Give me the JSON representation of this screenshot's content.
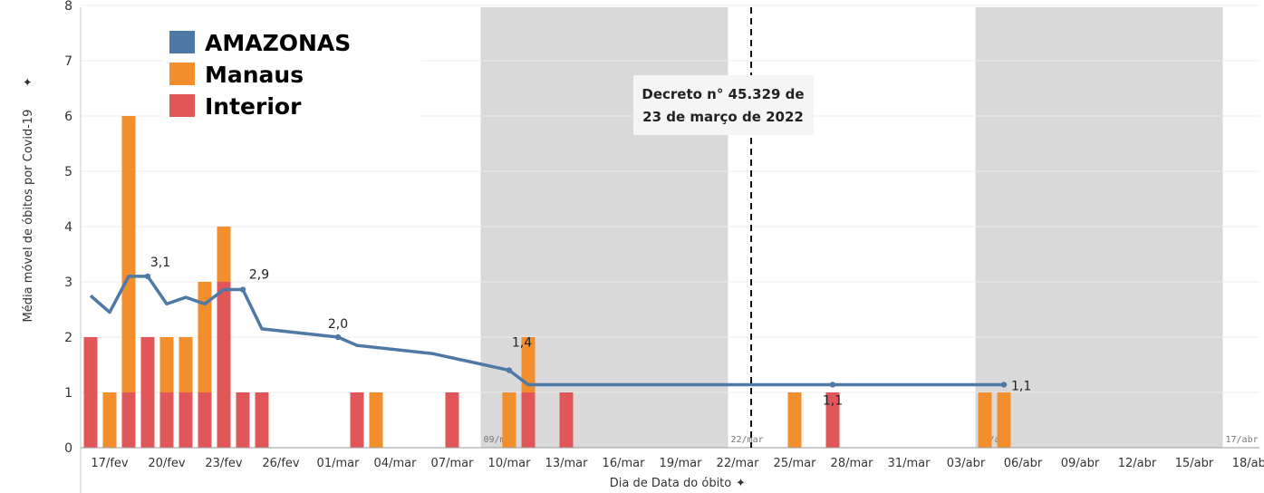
{
  "chart_data": {
    "type": "bar",
    "stacked": true,
    "x_axis_title": "Dia de Data do óbito",
    "y_axis_title": "Média móvel de óbitos por Covid-19",
    "ylim": [
      0,
      8
    ],
    "y_ticks": [
      "0",
      "1",
      "2",
      "3",
      "4",
      "5",
      "6",
      "7",
      "8"
    ],
    "x_tick_labels": [
      "17/fev",
      "20/fev",
      "23/fev",
      "26/fev",
      "01/mar",
      "04/mar",
      "07/mar",
      "10/mar",
      "13/mar",
      "16/mar",
      "19/mar",
      "22/mar",
      "25/mar",
      "28/mar",
      "31/mar",
      "03/abr",
      "06/abr",
      "09/abr",
      "12/abr",
      "15/abr",
      "18/abr"
    ],
    "grid": true,
    "legend_position": "top-left",
    "legend": [
      {
        "name": "AMAZONAS",
        "color": "#4e79a7"
      },
      {
        "name": "Manaus",
        "color": "#f28e2b"
      },
      {
        "name": "Interior",
        "color": "#e15759"
      }
    ],
    "shaded_bands": [
      {
        "label": "09/mar",
        "start": "09/mar",
        "end": "22/mar"
      },
      {
        "label": "22/mar",
        "start": "22/mar",
        "end": null
      },
      {
        "label": "04/abr",
        "start": "04/abr",
        "end": "17/abr"
      },
      {
        "label": "17/abr",
        "start": "17/abr",
        "end": null
      }
    ],
    "bars": [
      {
        "date": "16/fev",
        "interior": 2,
        "manaus": 0
      },
      {
        "date": "17/fev",
        "interior": 0,
        "manaus": 1
      },
      {
        "date": "18/fev",
        "interior": 1,
        "manaus": 5
      },
      {
        "date": "19/fev",
        "interior": 2,
        "manaus": 0
      },
      {
        "date": "20/fev",
        "interior": 1,
        "manaus": 1
      },
      {
        "date": "21/fev",
        "interior": 1,
        "manaus": 1
      },
      {
        "date": "22/fev",
        "interior": 1,
        "manaus": 2
      },
      {
        "date": "23/fev",
        "interior": 3,
        "manaus": 1
      },
      {
        "date": "24/fev",
        "interior": 1,
        "manaus": 0
      },
      {
        "date": "25/fev",
        "interior": 1,
        "manaus": 0
      },
      {
        "date": "02/mar",
        "interior": 1,
        "manaus": 0
      },
      {
        "date": "03/mar",
        "interior": 0,
        "manaus": 1
      },
      {
        "date": "07/mar",
        "interior": 1,
        "manaus": 0
      },
      {
        "date": "10/mar",
        "interior": 0,
        "manaus": 1
      },
      {
        "date": "11/mar",
        "interior": 1,
        "manaus": 1
      },
      {
        "date": "13/mar",
        "interior": 1,
        "manaus": 0
      },
      {
        "date": "25/mar",
        "interior": 0,
        "manaus": 1
      },
      {
        "date": "27/mar",
        "interior": 1,
        "manaus": 0
      },
      {
        "date": "04/abr",
        "interior": 0,
        "manaus": 1
      },
      {
        "date": "05/abr",
        "interior": 0,
        "manaus": 1
      }
    ],
    "line": {
      "name": "AMAZONAS",
      "points": [
        {
          "date": "16/fev",
          "value": 2.75
        },
        {
          "date": "17/fev",
          "value": 2.45
        },
        {
          "date": "18/fev",
          "value": 3.1
        },
        {
          "date": "19/fev",
          "value": 3.1
        },
        {
          "date": "20/fev",
          "value": 2.6
        },
        {
          "date": "21/fev",
          "value": 2.72
        },
        {
          "date": "22/fev",
          "value": 2.6
        },
        {
          "date": "23/fev",
          "value": 2.86
        },
        {
          "date": "24/fev",
          "value": 2.86
        },
        {
          "date": "25/fev",
          "value": 2.15
        },
        {
          "date": "01/mar",
          "value": 2.0
        },
        {
          "date": "02/mar",
          "value": 1.85
        },
        {
          "date": "06/mar",
          "value": 1.7
        },
        {
          "date": "10/mar",
          "value": 1.4
        },
        {
          "date": "11/mar",
          "value": 1.14
        },
        {
          "date": "27/mar",
          "value": 1.14
        },
        {
          "date": "05/abr",
          "value": 1.14
        }
      ],
      "labels": [
        {
          "date": "19/fev",
          "text": "3,1"
        },
        {
          "date": "24/fev",
          "text": "2,9"
        },
        {
          "date": "01/mar",
          "text": "2,0"
        },
        {
          "date": "10/mar",
          "text": "1,4"
        },
        {
          "date": "27/mar",
          "text": "1,1"
        },
        {
          "date": "05/abr",
          "text": "1,1"
        }
      ]
    },
    "annotation": {
      "line1": "Decreto n° 45.329 de",
      "line2": "23 de março de 2022",
      "date": "22/mar"
    }
  }
}
